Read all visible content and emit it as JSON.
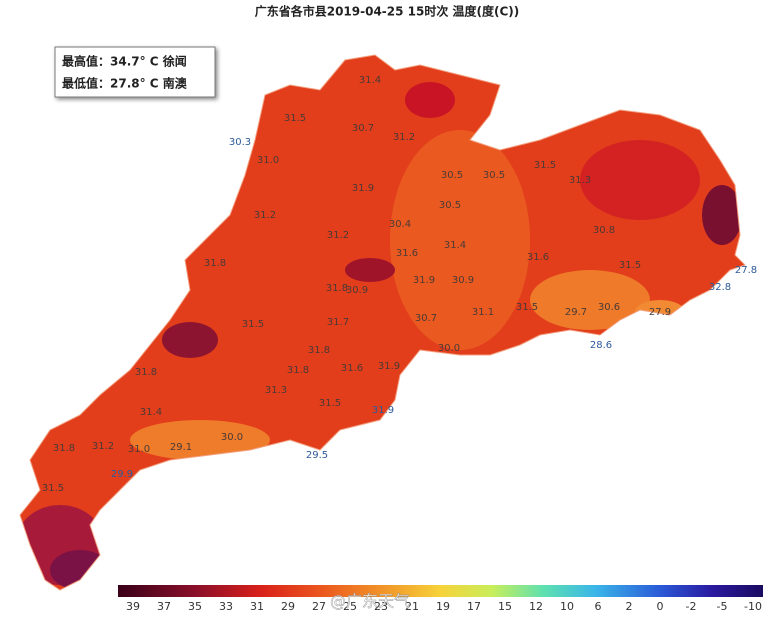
{
  "title": "广东省各市县2019-04-25 15时次 温度(度(C))",
  "info": {
    "max": "最高值：34.7° C 徐闻",
    "min": "最低值：27.8° C 南澳"
  },
  "map": {
    "labels": [
      "31.4",
      "31.5",
      "30.7",
      "31.2",
      "30.3",
      "31.0",
      "31.9",
      "30.5",
      "30.5",
      "31.5",
      "31.3",
      "31.2",
      "30.4",
      "30.5",
      "30.8",
      "31.2",
      "31.4",
      "31.6",
      "31.6",
      "31.8",
      "31.5",
      "27.8",
      "32.8",
      "31.8",
      "30.9",
      "31.9",
      "30.9",
      "31.5",
      "31.1",
      "29.7",
      "30.6",
      "27.9",
      "30.7",
      "31.5",
      "30.0",
      "28.6",
      "31.7",
      "31.8",
      "31.8",
      "31.8",
      "31.6",
      "31.9",
      "31.3",
      "31.4",
      "31.5",
      "31.9",
      "31.8",
      "31.2",
      "31.0",
      "29.1",
      "30.0",
      "29.5",
      "29.9",
      "31.5"
    ]
  },
  "legend": {
    "labels": [
      "39",
      "37",
      "35",
      "33",
      "31",
      "29",
      "27",
      "25",
      "23",
      "21",
      "19",
      "17",
      "15",
      "12",
      "10",
      "6",
      "2",
      "0",
      "-2",
      "-5",
      "-10"
    ]
  },
  "watermark": "@广东天气"
}
